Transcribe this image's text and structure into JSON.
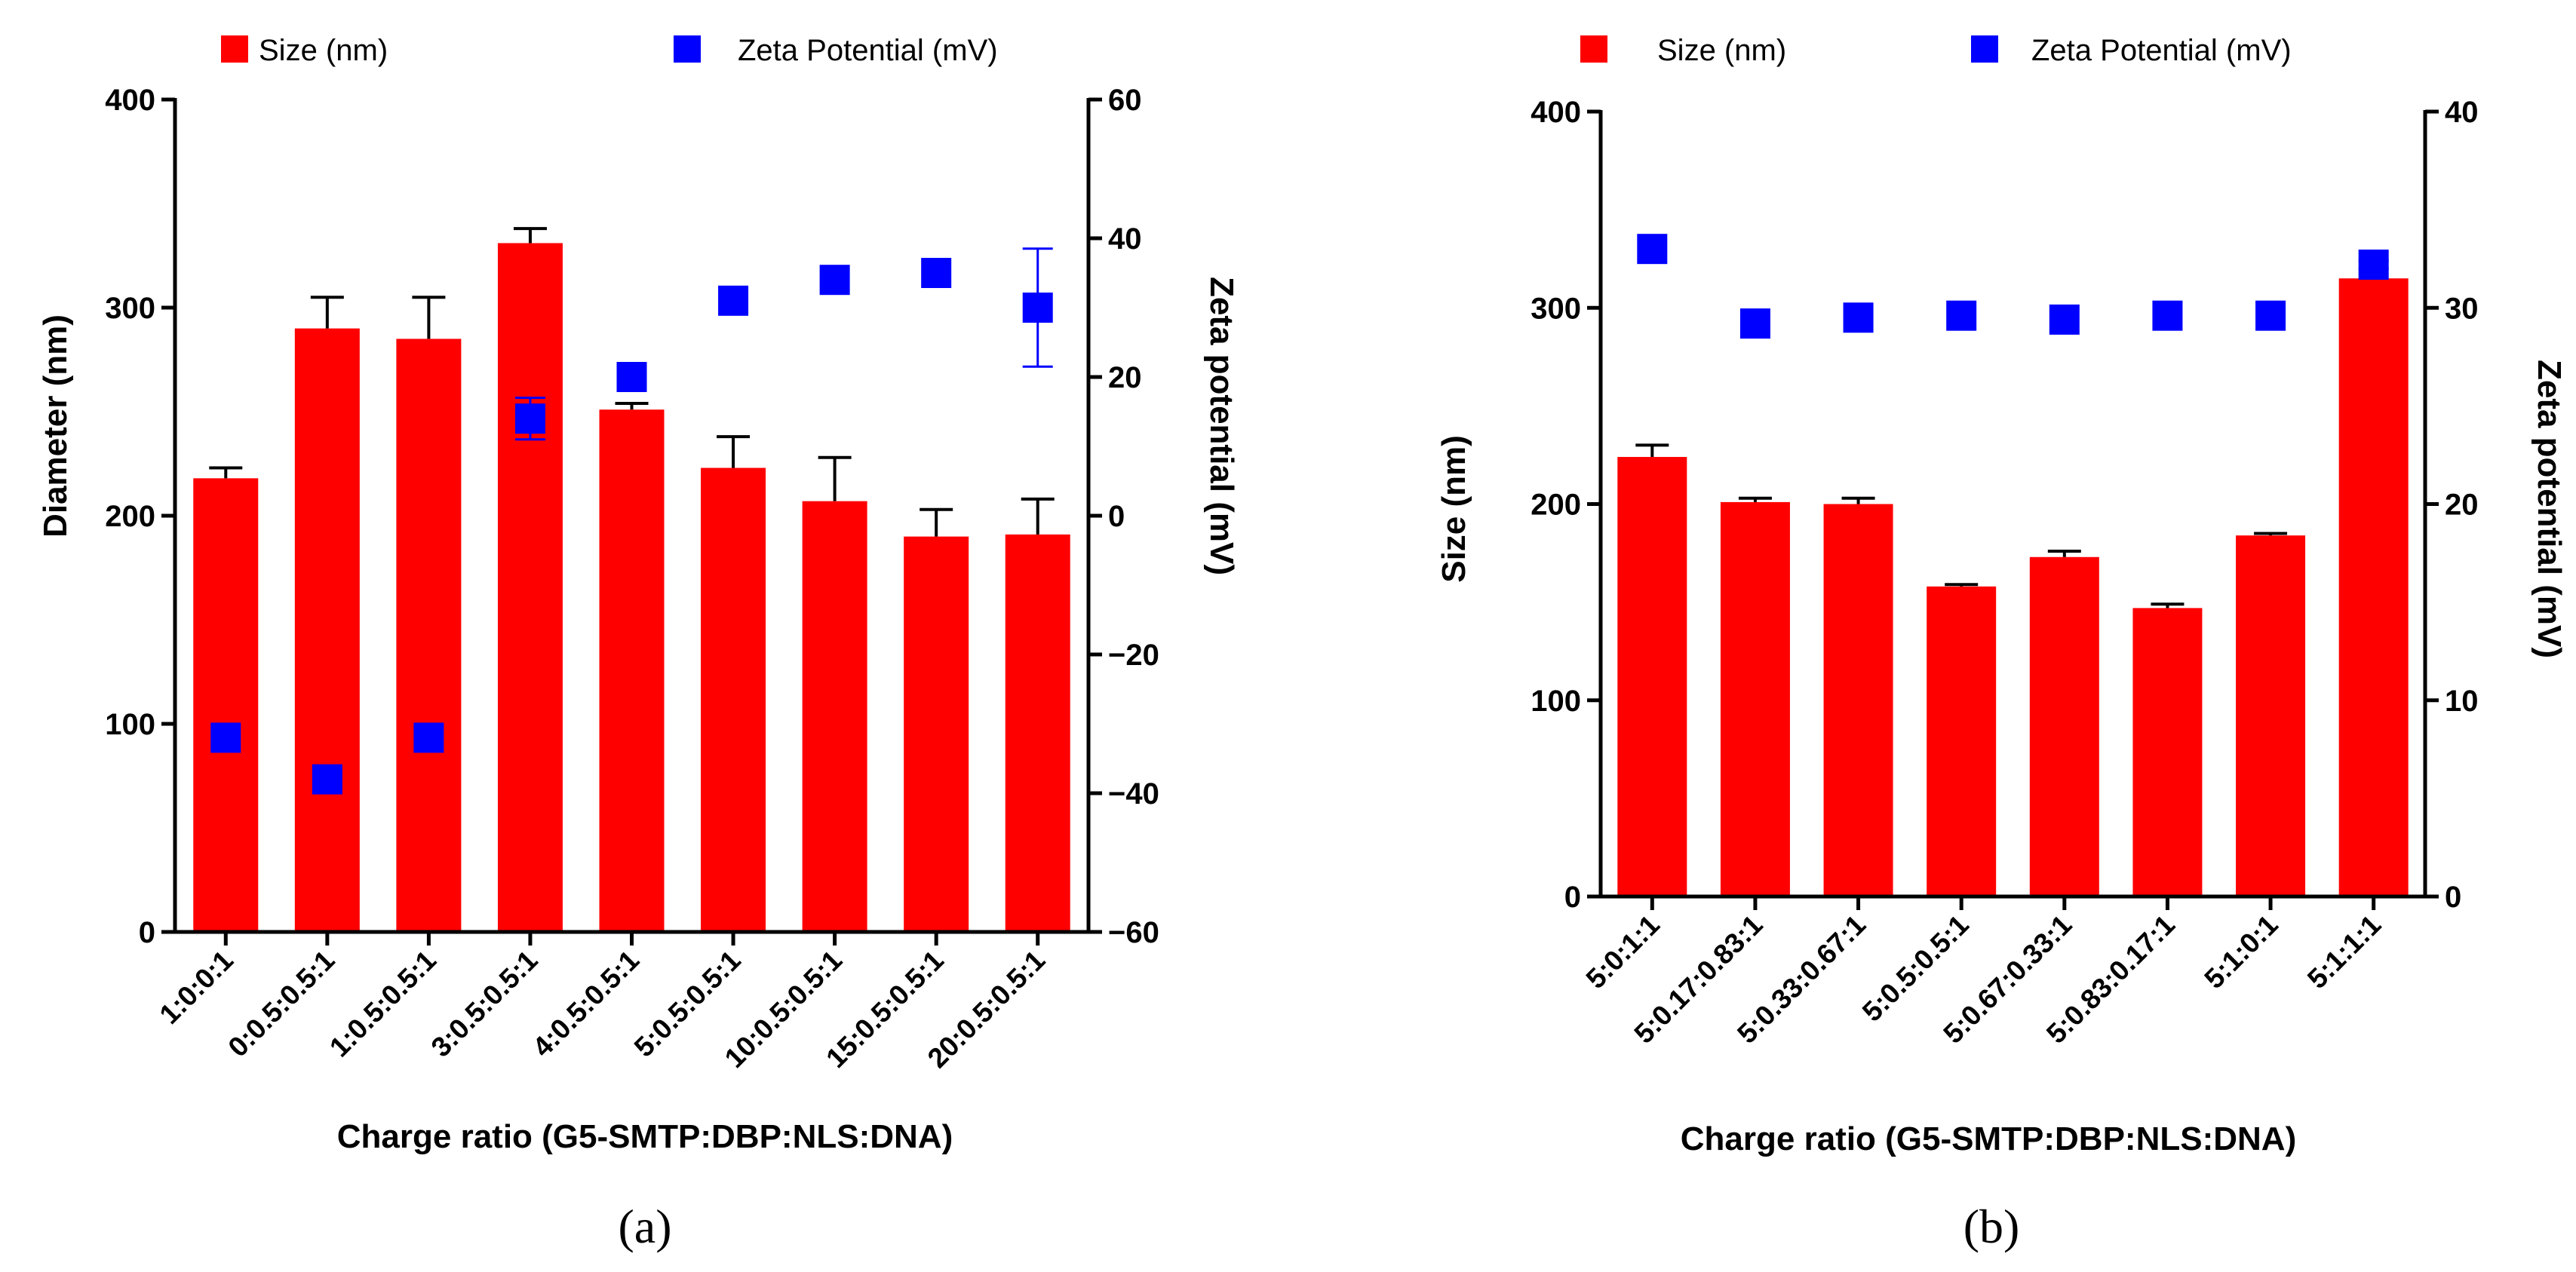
{
  "chart_data": [
    {
      "type": "bar",
      "panel_label": "(a)",
      "categories": [
        "1:0:0:1",
        "0:0.5:0.5:1",
        "1:0.5:0.5:1",
        "3:0.5:0.5:1",
        "4:0.5:0.5:1",
        "5:0.5:0.5:1",
        "10:0.5:0.5:1",
        "15:0.5:0.5:1",
        "20:0.5:0.5:1"
      ],
      "xlabel": "Charge ratio (G5-SMTP:DBP:NLS:DNA)",
      "ylabel": "Diameter (nm)",
      "y2label": "Zeta potential (mV)",
      "ylim": [
        0,
        400
      ],
      "yticks": [
        0,
        100,
        200,
        300,
        400
      ],
      "y2lim": [
        -60,
        60
      ],
      "y2ticks": [
        -60,
        -40,
        -20,
        0,
        20,
        40,
        60
      ],
      "legend": [
        "Size (nm)",
        "Zeta Potential (mV)"
      ],
      "series": [
        {
          "name": "Size (nm)",
          "kind": "bar",
          "axis": "left",
          "color": "#ff0000",
          "values": [
            218,
            290,
            285,
            331,
            251,
            223,
            207,
            190,
            191
          ],
          "errors": [
            5,
            15,
            20,
            7,
            3,
            15,
            21,
            13,
            17
          ]
        },
        {
          "name": "Zeta Potential (mV)",
          "kind": "scatter",
          "axis": "right",
          "color": "#0000ff",
          "values": [
            -32,
            -38,
            -32,
            14,
            20,
            31,
            34,
            35,
            30
          ],
          "errors": [
            0,
            0,
            0,
            3,
            0,
            0,
            0,
            0,
            8.5
          ]
        }
      ]
    },
    {
      "type": "bar",
      "panel_label": "(b)",
      "categories": [
        "5:0:1:1",
        "5:0.17:0.83:1",
        "5:0.33:0.67:1",
        "5:0.5:0.5:1",
        "5:0.67:0.33:1",
        "5:0.83:0.17:1",
        "5:1:0:1",
        "5:1:1:1"
      ],
      "xlabel": "Charge ratio (G5-SMTP:DBP:NLS:DNA)",
      "ylabel": "Size (nm)",
      "y2label": "Zeta potential (mV)",
      "ylim": [
        0,
        400
      ],
      "yticks": [
        0,
        100,
        200,
        300,
        400
      ],
      "y2lim": [
        0,
        40
      ],
      "y2ticks": [
        0,
        10,
        20,
        30,
        40
      ],
      "legend": [
        "Size (nm)",
        "Zeta Potential (mV)"
      ],
      "series": [
        {
          "name": "Size (nm)",
          "kind": "bar",
          "axis": "left",
          "color": "#ff0000",
          "values": [
            224,
            201,
            200,
            158,
            173,
            147,
            184,
            315
          ],
          "errors": [
            6,
            2,
            3,
            1,
            3,
            2,
            1,
            0
          ]
        },
        {
          "name": "Zeta Potential (mV)",
          "kind": "scatter",
          "axis": "right",
          "color": "#0000ff",
          "values": [
            33,
            29.2,
            29.5,
            29.6,
            29.4,
            29.6,
            29.6,
            32.2
          ],
          "errors": [
            0,
            0,
            0,
            0,
            0,
            0,
            0,
            0.2
          ]
        }
      ]
    }
  ]
}
